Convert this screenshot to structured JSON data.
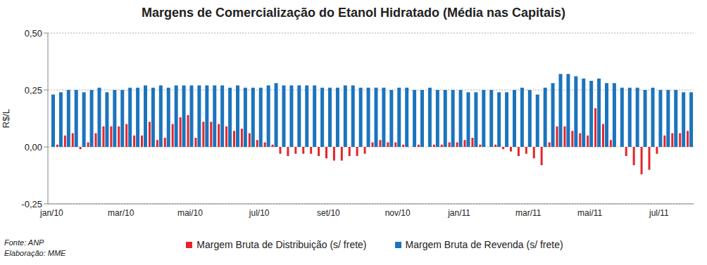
{
  "chart_data": {
    "type": "bar",
    "title": "Margens de Comercialização do Etanol Hidratado (Média nas Capitais)",
    "y_label": "R$/L",
    "annotations": [
      "Fonte: ANP",
      "Elaboração: MME"
    ],
    "categories": [
      "jan/10",
      null,
      null,
      null,
      null,
      null,
      null,
      null,
      null,
      "mar/10",
      null,
      null,
      null,
      null,
      null,
      null,
      null,
      null,
      "mai/10",
      null,
      null,
      null,
      null,
      null,
      null,
      null,
      null,
      "jul/10",
      null,
      null,
      null,
      null,
      null,
      null,
      null,
      null,
      "set/10",
      null,
      null,
      null,
      null,
      null,
      null,
      null,
      null,
      "nov/10",
      null,
      null,
      null,
      null,
      null,
      null,
      null,
      "jan/11",
      null,
      null,
      null,
      null,
      null,
      null,
      null,
      null,
      "mar/11",
      null,
      null,
      null,
      null,
      null,
      null,
      null,
      "mai/11",
      null,
      null,
      null,
      null,
      null,
      null,
      null,
      null,
      "jul/11",
      null,
      null,
      null,
      null
    ],
    "series": [
      {
        "name": "Margem Bruta de Distribuição (s/ frete)",
        "color": "#e3262b",
        "values": [
          0.0,
          0.01,
          0.05,
          0.06,
          -0.01,
          0.02,
          0.06,
          0.09,
          0.09,
          0.09,
          0.1,
          0.05,
          0.05,
          0.11,
          0.03,
          0.04,
          0.1,
          0.13,
          0.14,
          0.04,
          0.11,
          0.11,
          0.1,
          0.09,
          0.07,
          0.08,
          0.06,
          0.03,
          0.02,
          0.01,
          -0.03,
          -0.04,
          -0.03,
          -0.03,
          -0.03,
          -0.04,
          -0.05,
          -0.06,
          -0.06,
          -0.04,
          -0.04,
          -0.03,
          0.02,
          0.03,
          0.02,
          0.02,
          0.01,
          0.0,
          0.01,
          0.0,
          0.01,
          0.01,
          0.02,
          0.02,
          0.03,
          0.04,
          0.01,
          0.0,
          0.01,
          -0.01,
          -0.02,
          -0.04,
          -0.03,
          -0.05,
          -0.08,
          0.02,
          0.09,
          0.09,
          0.07,
          0.06,
          0.05,
          0.17,
          0.1,
          0.03,
          0.0,
          -0.04,
          -0.08,
          -0.12,
          -0.1,
          -0.03,
          0.05,
          0.06,
          0.06,
          0.07
        ]
      },
      {
        "name": "Margem Bruta de Revenda (s/ frete)",
        "color": "#1b74bd",
        "values": [
          0.23,
          0.24,
          0.25,
          0.25,
          0.24,
          0.25,
          0.26,
          0.24,
          0.25,
          0.25,
          0.26,
          0.26,
          0.27,
          0.26,
          0.27,
          0.26,
          0.27,
          0.27,
          0.27,
          0.27,
          0.27,
          0.27,
          0.27,
          0.26,
          0.27,
          0.26,
          0.26,
          0.26,
          0.27,
          0.28,
          0.27,
          0.27,
          0.27,
          0.27,
          0.27,
          0.26,
          0.26,
          0.26,
          0.27,
          0.27,
          0.26,
          0.26,
          0.26,
          0.26,
          0.25,
          0.26,
          0.26,
          0.25,
          0.25,
          0.26,
          0.25,
          0.25,
          0.25,
          0.25,
          0.24,
          0.24,
          0.25,
          0.25,
          0.24,
          0.24,
          0.25,
          0.26,
          0.25,
          0.23,
          0.26,
          0.28,
          0.32,
          0.32,
          0.31,
          0.3,
          0.29,
          0.3,
          0.28,
          0.28,
          0.26,
          0.26,
          0.26,
          0.25,
          0.26,
          0.25,
          0.25,
          0.25,
          0.24,
          0.24
        ]
      }
    ],
    "ylim": [
      -0.25,
      0.5
    ],
    "yticks": [
      {
        "value": -0.25,
        "label": "-0,25"
      },
      {
        "value": 0,
        "label": "0,00"
      },
      {
        "value": 0.25,
        "label": "0,25"
      },
      {
        "value": 0.5,
        "label": "0,50"
      }
    ],
    "grid": true,
    "legend": "bottom"
  }
}
